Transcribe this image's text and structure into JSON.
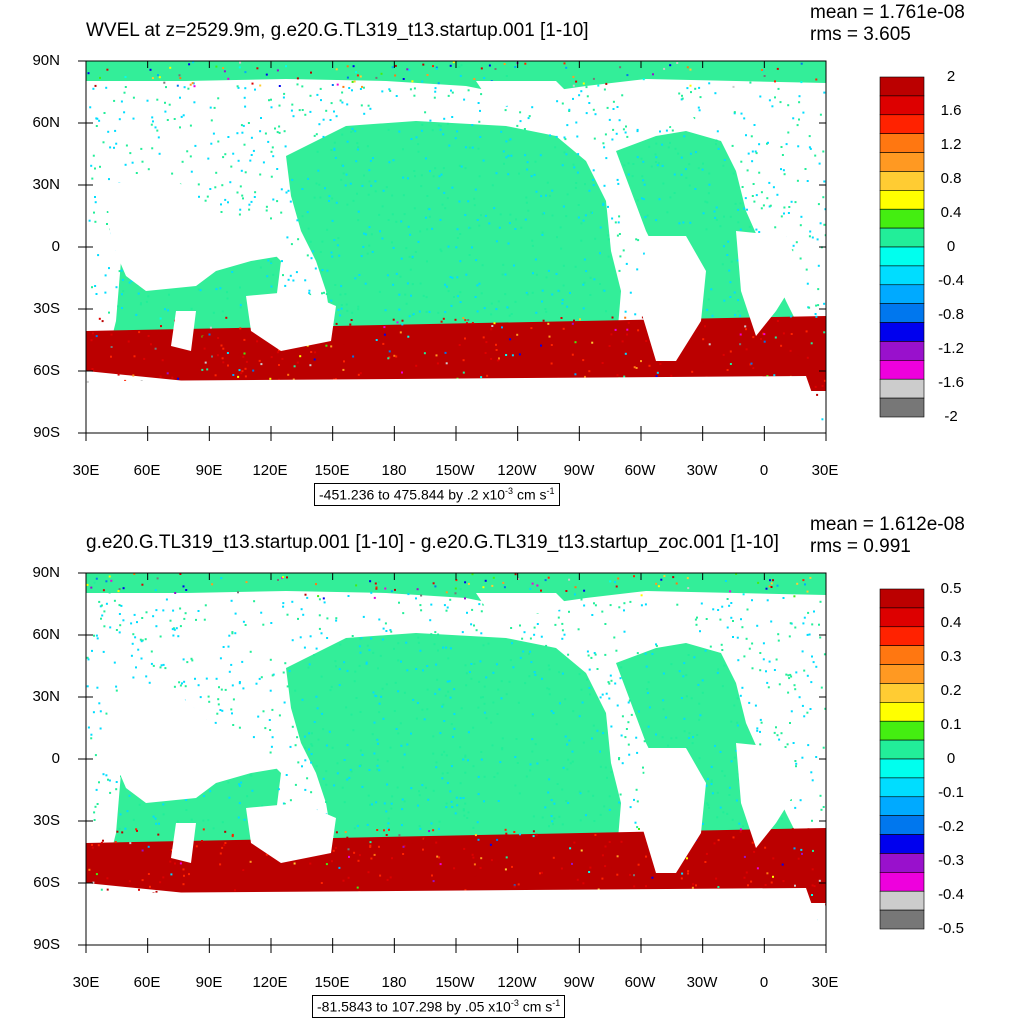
{
  "colors": {
    "land": "#ffffff",
    "ocean_dominant": "#33ee99",
    "palette": [
      "#777777",
      "#cccccc",
      "#ee00dd",
      "#9911cc",
      "#0000ee",
      "#0077ee",
      "#00aaff",
      "#00ddff",
      "#00ffee",
      "#22ee99",
      "#44ee11",
      "#ffff00",
      "#ffcc33",
      "#ff9922",
      "#ff7711",
      "#ff2200",
      "#dd0000",
      "#bb0000"
    ]
  },
  "icons": [
    "land-ocean-map",
    "colorbar"
  ],
  "panels": [
    {
      "title": "WVEL at z=2529.9m, g.e20.G.TL319_t13.startup.001 [1-10]",
      "mean": "mean = 1.761e-08",
      "rms": "rms = 3.605",
      "range_text": "-451.236 to 475.844 by .2 x10",
      "range_exp": "-3",
      "range_units": " cm s",
      "range_units_exp": "-1",
      "colorbar_labels": [
        "2",
        "1.6",
        "1.2",
        "0.8",
        "0.4",
        "0",
        "-0.4",
        "-0.8",
        "-1.2",
        "-1.6",
        "-2"
      ],
      "y_labels": [
        "90N",
        "60N",
        "30N",
        "0",
        "30S",
        "60S",
        "90S"
      ],
      "x_labels": [
        "30E",
        "60E",
        "90E",
        "120E",
        "150E",
        "180",
        "150W",
        "120W",
        "90W",
        "60W",
        "30W",
        "0",
        "30E"
      ],
      "southern_noise": 0.55
    },
    {
      "title": "g.e20.G.TL319_t13.startup.001 [1-10] - g.e20.G.TL319_t13.startup_zoc.001 [1-10]",
      "mean": "mean = 1.612e-08",
      "rms": "rms = 0.991",
      "range_text": "-81.5843 to 107.298 by .05 x10",
      "range_exp": "-3",
      "range_units": " cm s",
      "range_units_exp": "-1",
      "colorbar_labels": [
        "0.5",
        "0.4",
        "0.3",
        "0.2",
        "0.1",
        "0",
        "-0.1",
        "-0.2",
        "-0.3",
        "-0.4",
        "-0.5"
      ],
      "y_labels": [
        "90N",
        "60N",
        "30N",
        "0",
        "30S",
        "60S",
        "90S"
      ],
      "x_labels": [
        "30E",
        "60E",
        "90E",
        "120E",
        "150E",
        "180",
        "150W",
        "120W",
        "90W",
        "60W",
        "30W",
        "0",
        "30E"
      ],
      "southern_noise": 0.7
    }
  ]
}
